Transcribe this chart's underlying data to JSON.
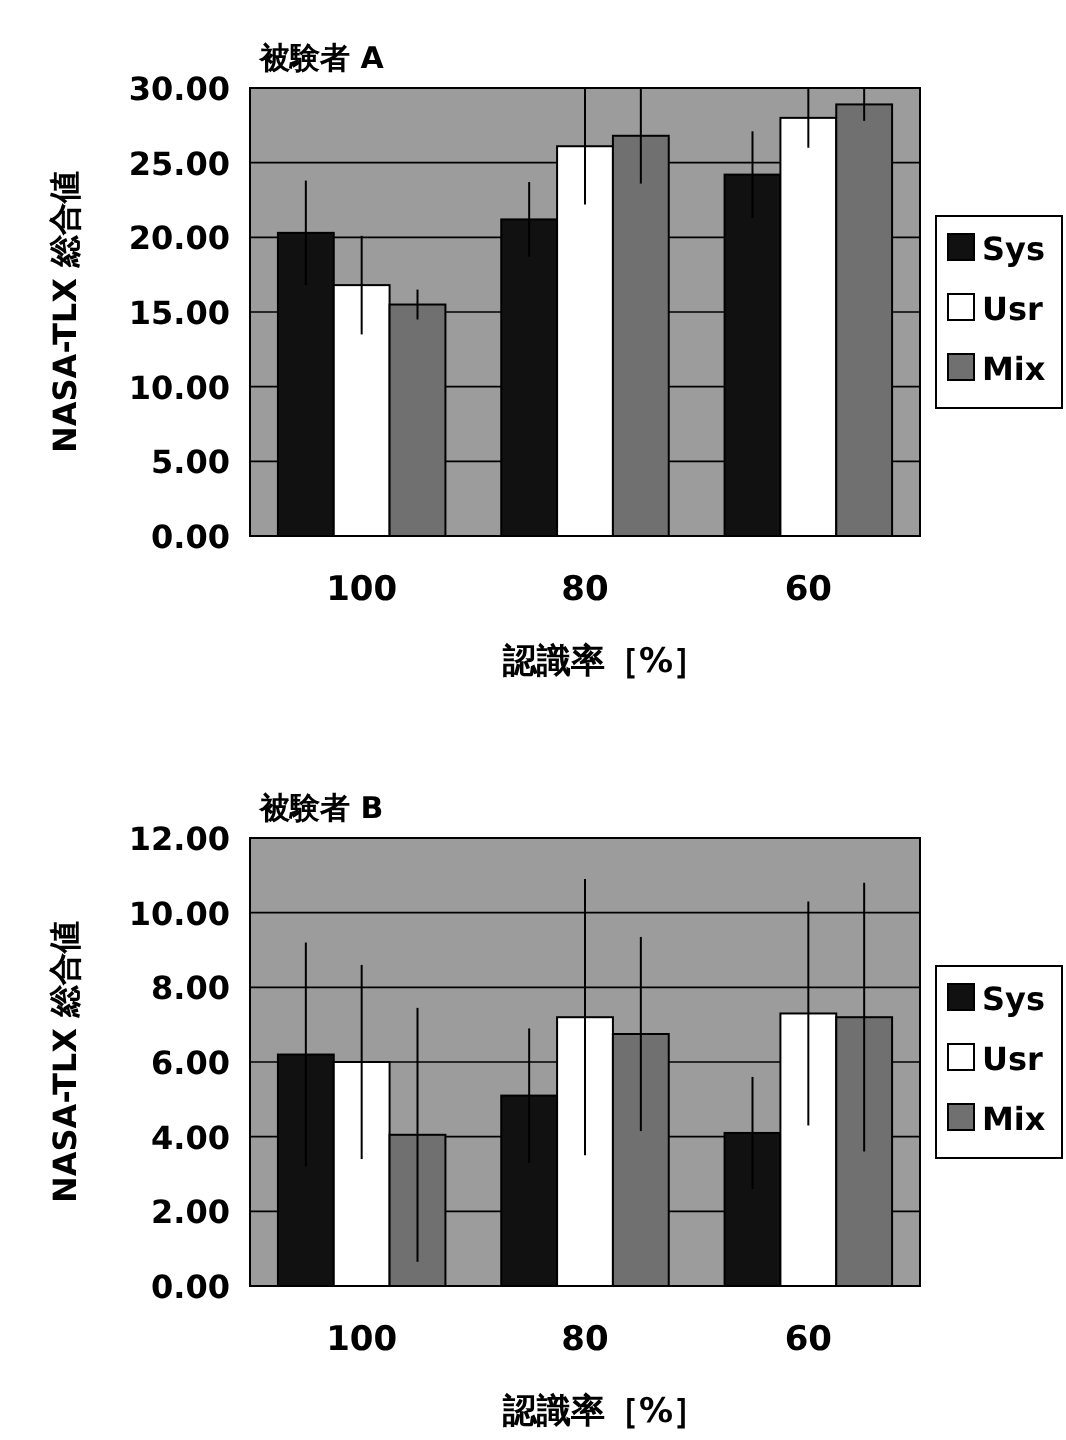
{
  "chart_data": [
    {
      "type": "bar",
      "title": "被験者 A",
      "xlabel": "認識率［%］",
      "ylabel": "NASA-TLX 総合値",
      "categories": [
        "100",
        "80",
        "60"
      ],
      "series": [
        {
          "name": "Sys",
          "color": "#111111",
          "values": [
            20.3,
            21.2,
            24.2
          ],
          "errors": [
            3.5,
            2.5,
            2.9
          ]
        },
        {
          "name": "Usr",
          "color": "#ffffff",
          "values": [
            16.8,
            26.1,
            28.0
          ],
          "errors": [
            3.3,
            3.9,
            2.0
          ]
        },
        {
          "name": "Mix",
          "color": "#707070",
          "values": [
            15.5,
            26.8,
            28.9
          ],
          "errors": [
            1.0,
            3.2,
            1.1
          ]
        }
      ],
      "ylim": [
        0,
        30
      ],
      "yticks": [
        {
          "value": 0,
          "label": "0.00"
        },
        {
          "value": 5,
          "label": "5.00"
        },
        {
          "value": 10,
          "label": "10.00"
        },
        {
          "value": 15,
          "label": "15.00"
        },
        {
          "value": 20,
          "label": "20.00"
        },
        {
          "value": 25,
          "label": "25.00"
        },
        {
          "value": 30,
          "label": "30.00"
        }
      ],
      "grid": "y",
      "legend": "right"
    },
    {
      "type": "bar",
      "title": "被験者 B",
      "xlabel": "認識率［%］",
      "ylabel": "NASA-TLX 総合値",
      "categories": [
        "100",
        "80",
        "60"
      ],
      "series": [
        {
          "name": "Sys",
          "color": "#111111",
          "values": [
            6.2,
            5.1,
            4.1
          ],
          "errors": [
            3.0,
            1.8,
            1.5
          ]
        },
        {
          "name": "Usr",
          "color": "#ffffff",
          "values": [
            6.0,
            7.2,
            7.3
          ],
          "errors": [
            2.6,
            3.7,
            3.0
          ]
        },
        {
          "name": "Mix",
          "color": "#707070",
          "values": [
            4.05,
            6.75,
            7.2
          ],
          "errors": [
            3.4,
            2.6,
            3.6
          ]
        }
      ],
      "ylim": [
        0,
        12
      ],
      "yticks": [
        {
          "value": 0,
          "label": "0.00"
        },
        {
          "value": 2,
          "label": "2.00"
        },
        {
          "value": 4,
          "label": "4.00"
        },
        {
          "value": 6,
          "label": "6.00"
        },
        {
          "value": 8,
          "label": "8.00"
        },
        {
          "value": 10,
          "label": "10.00"
        },
        {
          "value": 12,
          "label": "12.00"
        }
      ],
      "grid": "y",
      "legend": "right"
    }
  ]
}
